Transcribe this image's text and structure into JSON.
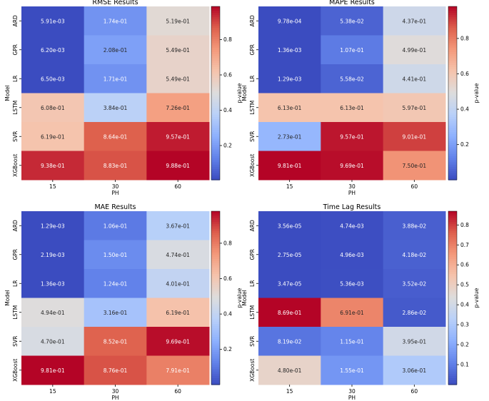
{
  "chart_data": [
    {
      "type": "heatmap",
      "title": "RMSE Results",
      "xlabel": "PH",
      "ylabel": "Model",
      "colorbar_label": "p-value",
      "x_categories": [
        "15",
        "30",
        "60"
      ],
      "y_categories": [
        "ARD",
        "GPR",
        "LR",
        "LSTM",
        "SVR",
        "XGBoost"
      ],
      "values": [
        [
          0.00591,
          0.174,
          0.519
        ],
        [
          0.0062,
          0.208,
          0.549
        ],
        [
          0.0065,
          0.171,
          0.549
        ],
        [
          0.608,
          0.384,
          0.726
        ],
        [
          0.619,
          0.864,
          0.957
        ],
        [
          0.938,
          0.883,
          0.988
        ]
      ],
      "labels": [
        [
          "5.91e-03",
          "1.74e-01",
          "5.19e-01"
        ],
        [
          "6.20e-03",
          "2.08e-01",
          "5.49e-01"
        ],
        [
          "6.50e-03",
          "1.71e-01",
          "5.49e-01"
        ],
        [
          "6.08e-01",
          "3.84e-01",
          "7.26e-01"
        ],
        [
          "6.19e-01",
          "8.64e-01",
          "9.57e-01"
        ],
        [
          "9.38e-01",
          "8.83e-01",
          "9.88e-01"
        ]
      ],
      "vmin": 0.00591,
      "vmax": 0.988,
      "colorbar_ticks": [
        0.2,
        0.4,
        0.6,
        0.8
      ],
      "colorbar_tick_labels": [
        "0.2",
        "0.4",
        "0.6",
        "0.8"
      ],
      "colormap": "coolwarm"
    },
    {
      "type": "heatmap",
      "title": "MAPE Results",
      "xlabel": "PH",
      "ylabel": "Model",
      "colorbar_label": "p-value",
      "x_categories": [
        "15",
        "30",
        "60"
      ],
      "y_categories": [
        "ARD",
        "GPR",
        "LR",
        "LSTM",
        "SVR",
        "XGBoost"
      ],
      "values": [
        [
          0.000978,
          0.0538,
          0.437
        ],
        [
          0.00136,
          0.107,
          0.499
        ],
        [
          0.00129,
          0.0558,
          0.441
        ],
        [
          0.613,
          0.613,
          0.597
        ],
        [
          0.273,
          0.957,
          0.901
        ],
        [
          0.981,
          0.969,
          0.75
        ]
      ],
      "labels": [
        [
          "9.78e-04",
          "5.38e-02",
          "4.37e-01"
        ],
        [
          "1.36e-03",
          "1.07e-01",
          "4.99e-01"
        ],
        [
          "1.29e-03",
          "5.58e-02",
          "4.41e-01"
        ],
        [
          "6.13e-01",
          "6.13e-01",
          "5.97e-01"
        ],
        [
          "2.73e-01",
          "9.57e-01",
          "9.01e-01"
        ],
        [
          "9.81e-01",
          "9.69e-01",
          "7.50e-01"
        ]
      ],
      "vmin": 0.000978,
      "vmax": 0.981,
      "colorbar_ticks": [
        0.2,
        0.4,
        0.6,
        0.8
      ],
      "colorbar_tick_labels": [
        "0.2",
        "0.4",
        "0.6",
        "0.8"
      ],
      "colormap": "coolwarm"
    },
    {
      "type": "heatmap",
      "title": "MAE Results",
      "xlabel": "PH",
      "ylabel": "Model",
      "colorbar_label": "p-value",
      "x_categories": [
        "15",
        "30",
        "60"
      ],
      "y_categories": [
        "ARD",
        "GPR",
        "LR",
        "LSTM",
        "SVR",
        "XGBoost"
      ],
      "values": [
        [
          0.00129,
          0.106,
          0.367
        ],
        [
          0.00219,
          0.15,
          0.474
        ],
        [
          0.00136,
          0.124,
          0.401
        ],
        [
          0.494,
          0.316,
          0.619
        ],
        [
          0.47,
          0.852,
          0.969
        ],
        [
          0.981,
          0.876,
          0.791
        ]
      ],
      "labels": [
        [
          "1.29e-03",
          "1.06e-01",
          "3.67e-01"
        ],
        [
          "2.19e-03",
          "1.50e-01",
          "4.74e-01"
        ],
        [
          "1.36e-03",
          "1.24e-01",
          "4.01e-01"
        ],
        [
          "4.94e-01",
          "3.16e-01",
          "6.19e-01"
        ],
        [
          "4.70e-01",
          "8.52e-01",
          "9.69e-01"
        ],
        [
          "9.81e-01",
          "8.76e-01",
          "7.91e-01"
        ]
      ],
      "vmin": 0.00129,
      "vmax": 0.981,
      "colorbar_ticks": [
        0.2,
        0.4,
        0.6,
        0.8
      ],
      "colorbar_tick_labels": [
        "0.2",
        "0.4",
        "0.6",
        "0.8"
      ],
      "colormap": "coolwarm"
    },
    {
      "type": "heatmap",
      "title": "Time Lag Results",
      "xlabel": "PH",
      "ylabel": "Model",
      "colorbar_label": "p-value",
      "x_categories": [
        "15",
        "30",
        "60"
      ],
      "y_categories": [
        "ARD",
        "GPR",
        "LR",
        "LSTM",
        "SVR",
        "XGBoost"
      ],
      "values": [
        [
          3.56e-05,
          0.00474,
          0.0388
        ],
        [
          2.75e-05,
          0.00496,
          0.0418
        ],
        [
          3.47e-05,
          0.00536,
          0.0352
        ],
        [
          0.869,
          0.691,
          0.0286
        ],
        [
          0.0819,
          0.115,
          0.395
        ],
        [
          0.48,
          0.155,
          0.306
        ]
      ],
      "labels": [
        [
          "3.56e-05",
          "4.74e-03",
          "3.88e-02"
        ],
        [
          "2.75e-05",
          "4.96e-03",
          "4.18e-02"
        ],
        [
          "3.47e-05",
          "5.36e-03",
          "3.52e-02"
        ],
        [
          "8.69e-01",
          "6.91e-01",
          "2.86e-02"
        ],
        [
          "8.19e-02",
          "1.15e-01",
          "3.95e-01"
        ],
        [
          "4.80e-01",
          "1.55e-01",
          "3.06e-01"
        ]
      ],
      "vmin": 2.75e-05,
      "vmax": 0.869,
      "colorbar_ticks": [
        0.1,
        0.2,
        0.3,
        0.4,
        0.5,
        0.6,
        0.7,
        0.8
      ],
      "colorbar_tick_labels": [
        "0.1",
        "0.2",
        "0.3",
        "0.4",
        "0.5",
        "0.6",
        "0.7",
        "0.8"
      ],
      "colormap": "coolwarm"
    }
  ]
}
